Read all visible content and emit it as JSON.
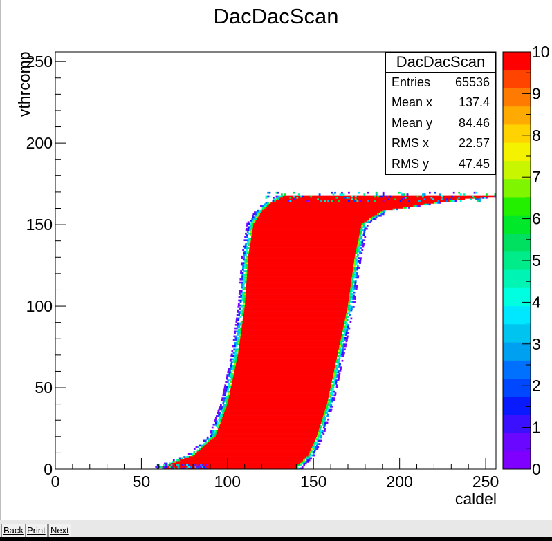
{
  "chart_data": {
    "type": "heatmap",
    "title": "DacDacScan",
    "xlabel": "caldel",
    "ylabel": "vthrcomp",
    "xlim": [
      0,
      256
    ],
    "ylim": [
      0,
      256
    ],
    "zlim": [
      0,
      10
    ],
    "x_ticks": [
      "0",
      "50",
      "100",
      "150",
      "200",
      "250"
    ],
    "y_ticks": [
      "0",
      "50",
      "100",
      "150",
      "200",
      "250"
    ],
    "z_ticks": [
      "0",
      "1",
      "2",
      "3",
      "4",
      "5",
      "6",
      "7",
      "8",
      "9",
      "10"
    ],
    "palette": [
      "#7f00ff",
      "#6a08ff",
      "#3a10ff",
      "#0a1aff",
      "#0048ff",
      "#0070ff",
      "#00a0f0",
      "#00c4f0",
      "#00e8ff",
      "#00ffe0",
      "#00f5b5",
      "#00eb8a",
      "#00e060",
      "#00e82a",
      "#22f000",
      "#80f500",
      "#c8f500",
      "#f5f200",
      "#ffd300",
      "#ffaa00",
      "#ff7a00",
      "#ff4400",
      "#ff0000"
    ],
    "band": [
      {
        "y": 1,
        "xmin": 62,
        "xmax": 140
      },
      {
        "y": 8,
        "xmin": 80,
        "xmax": 147
      },
      {
        "y": 20,
        "xmin": 93,
        "xmax": 152
      },
      {
        "y": 40,
        "xmin": 100,
        "xmax": 158
      },
      {
        "y": 70,
        "xmin": 106,
        "xmax": 164
      },
      {
        "y": 100,
        "xmin": 110,
        "xmax": 170
      },
      {
        "y": 130,
        "xmin": 112,
        "xmax": 174
      },
      {
        "y": 150,
        "xmin": 115,
        "xmax": 178
      },
      {
        "y": 158,
        "xmin": 120,
        "xmax": 190
      },
      {
        "y": 163,
        "xmin": 125,
        "xmax": 220
      },
      {
        "y": 167,
        "xmin": 132,
        "xmax": 256
      }
    ],
    "stats": {
      "title": "DacDacScan",
      "rows": [
        {
          "name": "Entries",
          "value": "65536"
        },
        {
          "name": "Mean x",
          "value": "137.4"
        },
        {
          "name": "Mean y",
          "value": "84.46"
        },
        {
          "name": "RMS x",
          "value": "22.57"
        },
        {
          "name": "RMS y",
          "value": "47.45"
        }
      ]
    }
  },
  "buttons": {
    "back": "Back",
    "print": "Print",
    "next": "Next"
  }
}
